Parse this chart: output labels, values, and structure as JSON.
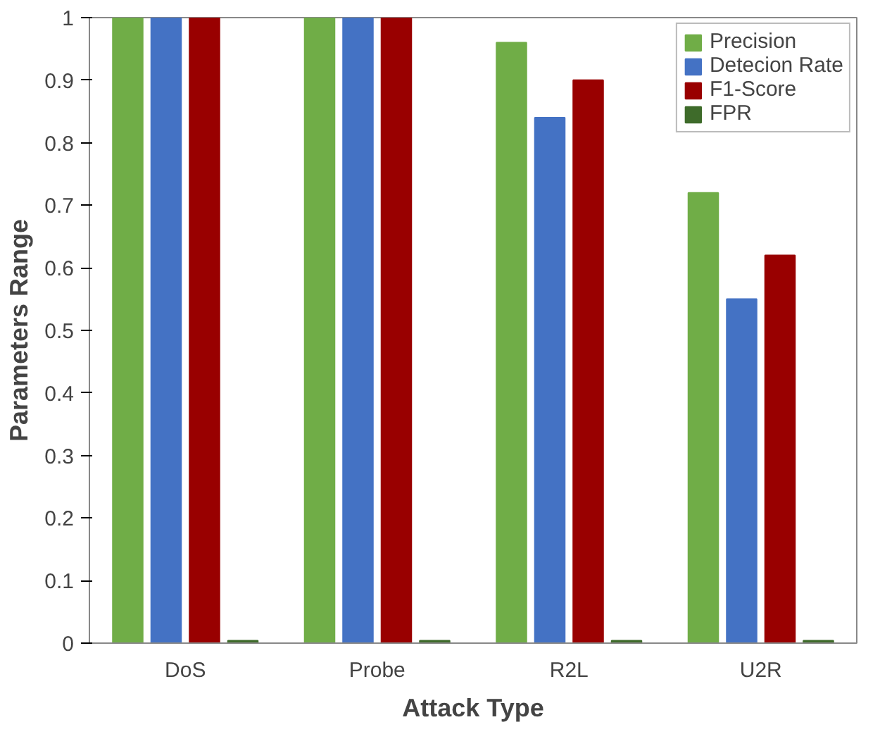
{
  "chart_data": {
    "type": "bar",
    "xlabel": "Attack Type",
    "ylabel": "Parameters Range",
    "categories": [
      "DoS",
      "Probe",
      "R2L",
      "U2R"
    ],
    "series": [
      {
        "name": "Precision",
        "color": "#70ad47",
        "values": [
          1,
          1,
          0.96,
          0.72
        ]
      },
      {
        "name": "Detecion Rate",
        "color": "#4472c4",
        "values": [
          1,
          1,
          0.84,
          0.55
        ]
      },
      {
        "name": "F1-Score",
        "color": "#990000",
        "values": [
          1,
          1,
          0.9,
          0.62
        ]
      },
      {
        "name": "FPR",
        "color": "#3e6b2a",
        "values": [
          0.004,
          0.004,
          0.004,
          0.004
        ]
      }
    ],
    "ylim": [
      0,
      1
    ],
    "yticks": [
      0,
      0.1,
      0.2,
      0.3,
      0.4,
      0.5,
      0.6,
      0.7,
      0.8,
      0.9,
      1
    ],
    "grid": false,
    "legend": "top right"
  }
}
